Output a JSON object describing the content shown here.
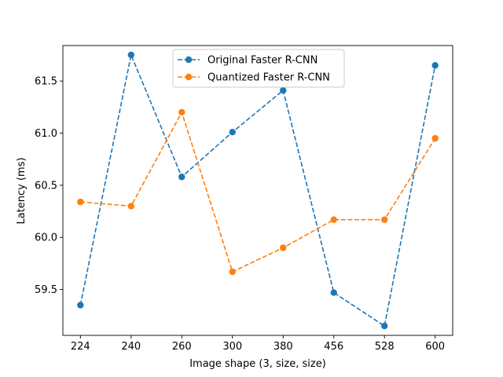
{
  "chart_data": {
    "type": "line",
    "title": "",
    "xlabel": "Image shape (3, size, size)",
    "ylabel": "Latency (ms)",
    "categories": [
      "224",
      "240",
      "260",
      "300",
      "380",
      "456",
      "528",
      "600"
    ],
    "ylim": [
      59.06,
      61.84
    ],
    "yticks": [
      "59.5",
      "60.0",
      "60.5",
      "61.0",
      "61.5"
    ],
    "grid": false,
    "legend_position": "top-center",
    "series": [
      {
        "name": "Original Faster R-CNN",
        "color": "#1f77b4",
        "linestyle": "dashed",
        "marker": "circle",
        "values": [
          59.35,
          61.75,
          60.58,
          61.01,
          61.41,
          59.47,
          59.15,
          61.65
        ]
      },
      {
        "name": "Quantized Faster R-CNN",
        "color": "#ff7f0e",
        "linestyle": "dashed",
        "marker": "circle",
        "values": [
          60.34,
          60.3,
          61.2,
          59.67,
          59.9,
          60.17,
          60.17,
          60.95
        ]
      }
    ]
  }
}
